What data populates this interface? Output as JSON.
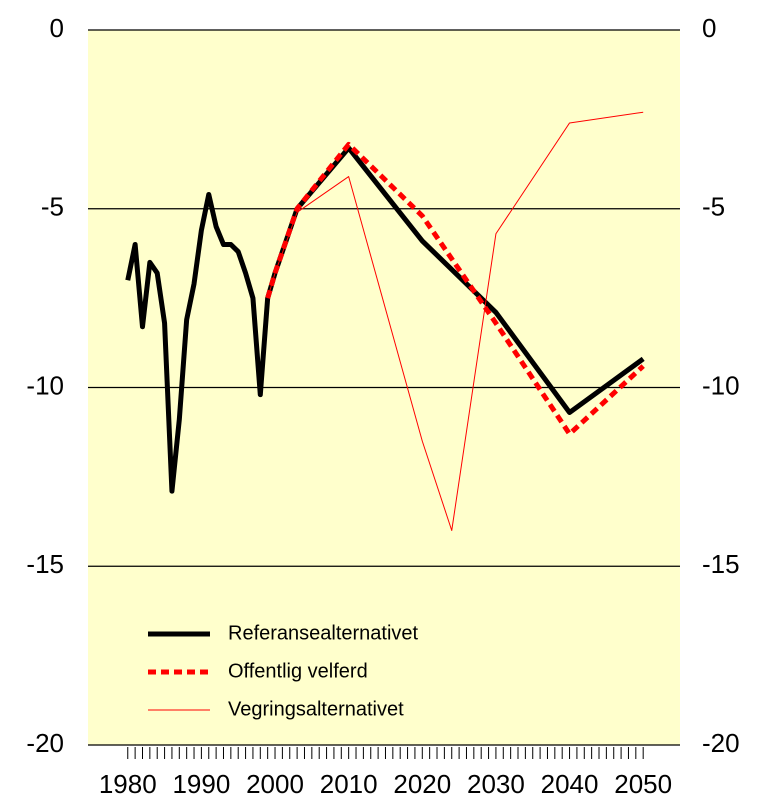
{
  "chart_data": {
    "type": "line",
    "xlim": [
      1974.6,
      2055
    ],
    "xticks": [
      1980,
      1990,
      2000,
      2010,
      2020,
      2030,
      2040,
      2050
    ],
    "ylim": [
      -20,
      0
    ],
    "yticks": [
      0,
      -5,
      -10,
      -15,
      -20
    ],
    "y2lim": [
      -20,
      0
    ],
    "y2ticks": [
      0,
      -5,
      -10,
      -15,
      -20
    ],
    "grid": true,
    "background": "#ffffcc",
    "legend": "lower left",
    "series": [
      {
        "name": "Referansealternativet",
        "color": "#000000",
        "style": "solid",
        "width": 5,
        "x": [
          1980,
          1981,
          1982,
          1983,
          1984,
          1985,
          1986,
          1987,
          1988,
          1989,
          1990,
          1991,
          1992,
          1993,
          1994,
          1995,
          1996,
          1997,
          1998,
          1999,
          2000,
          2003,
          2010,
          2020,
          2030,
          2040,
          2050
        ],
        "values": [
          -7.0,
          -6.0,
          -8.3,
          -6.5,
          -6.8,
          -8.2,
          -12.9,
          -10.9,
          -8.1,
          -7.1,
          -5.6,
          -4.6,
          -5.5,
          -6.0,
          -6.0,
          -6.2,
          -6.8,
          -7.5,
          -10.2,
          -7.5,
          -6.8,
          -5.0,
          -3.3,
          -5.9,
          -7.9,
          -10.7,
          -9.2
        ]
      },
      {
        "name": "Offentlig velferd",
        "color": "#ff0000",
        "style": "dashed",
        "width": 5,
        "x": [
          1999,
          2000,
          2003,
          2010,
          2020,
          2030,
          2040,
          2050
        ],
        "values": [
          -7.5,
          -6.8,
          -5.0,
          -3.2,
          -5.2,
          -8.2,
          -11.3,
          -9.4
        ]
      },
      {
        "name": "Vegringsalternativet",
        "color": "#ff0000",
        "style": "solid",
        "width": 1,
        "x": [
          1999,
          2000,
          2003,
          2010,
          2020,
          2024,
          2030,
          2040,
          2050
        ],
        "values": [
          -7.5,
          -6.8,
          -5.1,
          -4.1,
          -11.5,
          -14.0,
          -5.7,
          -2.6,
          -2.3
        ]
      }
    ]
  }
}
